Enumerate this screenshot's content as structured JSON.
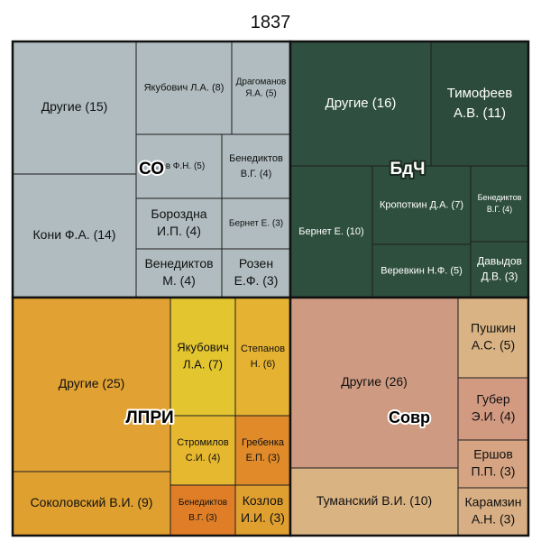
{
  "chart_data": {
    "type": "treemap",
    "title": "1837",
    "groups": [
      {
        "name": "СО",
        "color": "#b0bcbf",
        "text_color": "#111111",
        "items": [
          {
            "lines": [
              "Другие (15)"
            ],
            "value": 15
          },
          {
            "lines": [
              "Кони Ф.А. (14)"
            ],
            "value": 14
          },
          {
            "lines": [
              "Якубович Л.А. (8)"
            ],
            "value": 8
          },
          {
            "lines": [
              "Драгоманов",
              "Я.А. (5)"
            ],
            "value": 5
          },
          {
            "lines": [
              "...ов Ф.Н. (5)"
            ],
            "value": 5
          },
          {
            "lines": [
              "Бенедиктов",
              "В.Г. (4)"
            ],
            "value": 4
          },
          {
            "lines": [
              "Бороздна",
              "И.П. (4)"
            ],
            "value": 4
          },
          {
            "lines": [
              "Бернет Е. (3)"
            ],
            "value": 3
          },
          {
            "lines": [
              "Венедиктов",
              "М. (4)"
            ],
            "value": 4
          },
          {
            "lines": [
              "Розен",
              "Е.Ф. (3)"
            ],
            "value": 3
          }
        ]
      },
      {
        "name": "БдЧ",
        "color": "#2f4f3e",
        "text_color": "#ffffff",
        "items": [
          {
            "lines": [
              "Другие (16)"
            ],
            "value": 16
          },
          {
            "lines": [
              "Тимофеев",
              "А.В. (11)"
            ],
            "value": 11
          },
          {
            "lines": [
              "Бернет Е. (10)"
            ],
            "value": 10
          },
          {
            "lines": [
              "Кропоткин Д.А. (7)"
            ],
            "value": 7
          },
          {
            "lines": [
              "Бенедиктов",
              "В.Г. (4)"
            ],
            "value": 4
          },
          {
            "lines": [
              "Веревкин Н.Ф. (5)"
            ],
            "value": 5
          },
          {
            "lines": [
              "Давыдов",
              "Д.В. (3)"
            ],
            "value": 3
          }
        ]
      },
      {
        "name": "ЛПРИ",
        "color": "#e0a030",
        "text_color": "#111111",
        "items": [
          {
            "lines": [
              "Другие (25)"
            ],
            "value": 25
          },
          {
            "lines": [
              "Соколовский В.И. (9)"
            ],
            "value": 9
          },
          {
            "lines": [
              "Якубович",
              "Л.А. (7)"
            ],
            "value": 7
          },
          {
            "lines": [
              "Степанов",
              "Н. (6)"
            ],
            "value": 6
          },
          {
            "lines": [
              "Стромилов",
              "С.И. (4)"
            ],
            "value": 4
          },
          {
            "lines": [
              "Гребенка",
              "Е.П. (3)"
            ],
            "value": 3
          },
          {
            "lines": [
              "Бенедиктов",
              "В.Г. (3)"
            ],
            "value": 3
          },
          {
            "lines": [
              "Козлов",
              "И.И. (3)"
            ],
            "value": 3
          }
        ]
      },
      {
        "name": "Совр",
        "color": "#cf9a82",
        "text_color": "#111111",
        "items": [
          {
            "lines": [
              "Другие (26)"
            ],
            "value": 26
          },
          {
            "lines": [
              "Туманский В.И. (10)"
            ],
            "value": 10
          },
          {
            "lines": [
              "Пушкин",
              "А.С. (5)"
            ],
            "value": 5
          },
          {
            "lines": [
              "Губер",
              "Э.И. (4)"
            ],
            "value": 4
          },
          {
            "lines": [
              "Ершов",
              "П.П. (3)"
            ],
            "value": 3
          },
          {
            "lines": [
              "Карамзин",
              "А.Н. (3)"
            ],
            "value": 3
          }
        ]
      }
    ]
  }
}
